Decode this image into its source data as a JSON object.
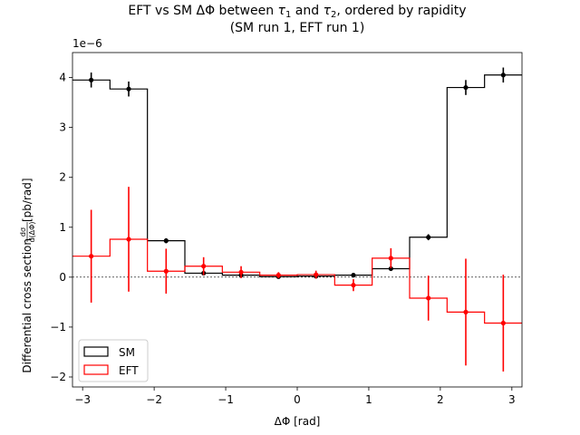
{
  "chart_data": {
    "type": "step",
    "title_line1_prefix": "EFT vs SM ΔΦ between ",
    "title_tau": "τ",
    "title_sub1": "1",
    "title_and": " and ",
    "title_sub2": "2",
    "title_line1_suffix": ", ordered by rapidity",
    "title_line2": "(SM run 1, EFT run 1)",
    "xlabel": "ΔΦ [rad]",
    "ylabel_prefix": "Differential cross section ",
    "ylabel_frac_num": "dσ",
    "ylabel_frac_den": "d(ΔΦ)",
    "ylabel_suffix": " [pb/rad]",
    "y_offset_label": "1e−6",
    "xlim": [
      -3.1416,
      3.1416
    ],
    "ylim": [
      -2.2,
      4.5
    ],
    "xticks": [
      -3,
      -2,
      -1,
      0,
      1,
      2,
      3
    ],
    "xtick_labels": [
      "−3",
      "−2",
      "−1",
      "0",
      "1",
      "2",
      "3"
    ],
    "yticks": [
      -2,
      -1,
      0,
      1,
      2,
      3,
      4
    ],
    "ytick_labels": [
      "−2",
      "−1",
      "0",
      "1",
      "2",
      "3",
      "4"
    ],
    "bin_edges": [
      -3.1416,
      -2.618,
      -2.0944,
      -1.5708,
      -1.0472,
      -0.5236,
      0,
      0.5236,
      1.0472,
      1.5708,
      2.0944,
      2.618,
      3.1416
    ],
    "bin_centers": [
      -2.88,
      -2.356,
      -1.833,
      -1.309,
      -0.785,
      -0.262,
      0.262,
      0.785,
      1.309,
      1.833,
      2.356,
      2.88
    ],
    "series": [
      {
        "name": "SM",
        "color": "#000000",
        "values": [
          3.95,
          3.77,
          0.73,
          0.08,
          0.04,
          0.01,
          0.02,
          0.04,
          0.17,
          0.8,
          3.8,
          4.05
        ],
        "errors": [
          0.15,
          0.15,
          0.05,
          0.02,
          0.02,
          0.01,
          0.01,
          0.02,
          0.03,
          0.06,
          0.15,
          0.15
        ]
      },
      {
        "name": "EFT",
        "color": "#ff0000",
        "values": [
          0.42,
          0.76,
          0.12,
          0.22,
          0.1,
          0.04,
          0.05,
          -0.16,
          0.38,
          -0.42,
          -0.7,
          -0.92
        ],
        "errors": [
          0.93,
          1.05,
          0.45,
          0.18,
          0.12,
          0.06,
          0.08,
          0.12,
          0.2,
          0.45,
          1.07,
          0.97
        ]
      }
    ],
    "zero_line": true,
    "legend_position": "lower-left"
  }
}
